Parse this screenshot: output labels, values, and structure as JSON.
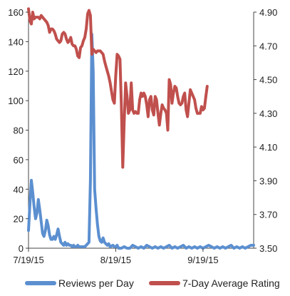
{
  "chart_data": {
    "type": "line",
    "title": "",
    "x_tick_labels": [
      "7/19/15",
      "8/19/15",
      "9/19/15"
    ],
    "x_ticks_day": [
      0,
      31,
      62
    ],
    "xlim_day": [
      0,
      80
    ],
    "left_axis": {
      "label": "",
      "ylim": [
        0,
        160
      ],
      "ticks": [
        "0",
        "20",
        "40",
        "60",
        "80",
        "100",
        "120",
        "140",
        "160"
      ],
      "tick_values": [
        0,
        20,
        40,
        60,
        80,
        100,
        120,
        140,
        160
      ]
    },
    "right_axis": {
      "label": "",
      "ylim": [
        3.5,
        4.9
      ],
      "ticks": [
        "3.50",
        "3.70",
        "3.90",
        "4.10",
        "4.30",
        "4.50",
        "4.70",
        "4.90"
      ],
      "tick_values": [
        3.5,
        3.7,
        3.9,
        4.1,
        4.3,
        4.5,
        4.7,
        4.9
      ]
    },
    "legend_position": "bottom",
    "gridlines": false,
    "series": [
      {
        "name": "Reviews per Day",
        "axis": "left",
        "color": "#5b8fd0",
        "points": [
          [
            0,
            12
          ],
          [
            0.5,
            30
          ],
          [
            1,
            46
          ],
          [
            1.5,
            38
          ],
          [
            2,
            28
          ],
          [
            2.5,
            20
          ],
          [
            3,
            24
          ],
          [
            3.5,
            33
          ],
          [
            4,
            26
          ],
          [
            4.5,
            18
          ],
          [
            5,
            10
          ],
          [
            5.5,
            8
          ],
          [
            6,
            12
          ],
          [
            6.5,
            19
          ],
          [
            7,
            15
          ],
          [
            7.5,
            9
          ],
          [
            8,
            6
          ],
          [
            8.5,
            6
          ],
          [
            9,
            8
          ],
          [
            9.5,
            6
          ],
          [
            10,
            9
          ],
          [
            10.5,
            13
          ],
          [
            11,
            8
          ],
          [
            11.5,
            4
          ],
          [
            12,
            3
          ],
          [
            12.5,
            2
          ],
          [
            13,
            4
          ],
          [
            13.5,
            2
          ],
          [
            14,
            3
          ],
          [
            14.5,
            2
          ],
          [
            15,
            2
          ],
          [
            15.5,
            1
          ],
          [
            16,
            2
          ],
          [
            16.5,
            1
          ],
          [
            17,
            1
          ],
          [
            17.5,
            2
          ],
          [
            18,
            1
          ],
          [
            18.5,
            1
          ],
          [
            19,
            1
          ],
          [
            19.5,
            1
          ],
          [
            20,
            1
          ],
          [
            20.5,
            2
          ],
          [
            21,
            3
          ],
          [
            21.5,
            4
          ],
          [
            22,
            46
          ],
          [
            22.5,
            145
          ],
          [
            23,
            120
          ],
          [
            23.5,
            40
          ],
          [
            24,
            27
          ],
          [
            24.5,
            16
          ],
          [
            25,
            8
          ],
          [
            25.5,
            5
          ],
          [
            26,
            4
          ],
          [
            26.5,
            7
          ],
          [
            27,
            4
          ],
          [
            27.5,
            3
          ],
          [
            28,
            2
          ],
          [
            28.5,
            3
          ],
          [
            29,
            1
          ],
          [
            30,
            2
          ],
          [
            30.5,
            1
          ],
          [
            31,
            1
          ],
          [
            31.5,
            2
          ],
          [
            32,
            0
          ],
          [
            33,
            0
          ],
          [
            34,
            1
          ],
          [
            35,
            0
          ],
          [
            36,
            0
          ],
          [
            37,
            2
          ],
          [
            38,
            1
          ],
          [
            39,
            0
          ],
          [
            40,
            1
          ],
          [
            41,
            0
          ],
          [
            42,
            2
          ],
          [
            43,
            1
          ],
          [
            44,
            0
          ],
          [
            45,
            1
          ],
          [
            46,
            0
          ],
          [
            47,
            1
          ],
          [
            48,
            0
          ],
          [
            49,
            1
          ],
          [
            50,
            2
          ],
          [
            51,
            0
          ],
          [
            52,
            1
          ],
          [
            53,
            0
          ],
          [
            54,
            1
          ],
          [
            55,
            2
          ],
          [
            56,
            0
          ],
          [
            57,
            1
          ],
          [
            58,
            0
          ],
          [
            59,
            1
          ],
          [
            60,
            0
          ],
          [
            61,
            1
          ],
          [
            62,
            0
          ],
          [
            63,
            1
          ],
          [
            64,
            2
          ],
          [
            65,
            1
          ],
          [
            66,
            0
          ],
          [
            67,
            1
          ],
          [
            68,
            0
          ],
          [
            69,
            1
          ],
          [
            70,
            0
          ],
          [
            71,
            1
          ],
          [
            72,
            2
          ],
          [
            73,
            0
          ],
          [
            74,
            1
          ],
          [
            75,
            0
          ],
          [
            76,
            1
          ],
          [
            77,
            0
          ],
          [
            78,
            1
          ],
          [
            79,
            2
          ],
          [
            80,
            2
          ]
        ]
      },
      {
        "name": "7-Day Average Rating",
        "axis": "right",
        "color": "#c0504d",
        "points": [
          [
            0,
            4.92
          ],
          [
            0.5,
            4.85
          ],
          [
            1,
            4.83
          ],
          [
            1.5,
            4.9
          ],
          [
            2,
            4.86
          ],
          [
            2.5,
            4.87
          ],
          [
            3,
            4.87
          ],
          [
            3.5,
            4.87
          ],
          [
            4,
            4.86
          ],
          [
            4.5,
            4.88
          ],
          [
            5,
            4.87
          ],
          [
            5.5,
            4.86
          ],
          [
            6,
            4.85
          ],
          [
            6.5,
            4.84
          ],
          [
            7,
            4.82
          ],
          [
            7.5,
            4.78
          ],
          [
            8,
            4.8
          ],
          [
            8.5,
            4.8
          ],
          [
            9,
            4.79
          ],
          [
            9.5,
            4.77
          ],
          [
            10,
            4.74
          ],
          [
            10.5,
            4.73
          ],
          [
            11,
            4.72
          ],
          [
            11.5,
            4.73
          ],
          [
            12,
            4.77
          ],
          [
            12.5,
            4.78
          ],
          [
            13,
            4.77
          ],
          [
            13.5,
            4.74
          ],
          [
            14,
            4.72
          ],
          [
            14.5,
            4.73
          ],
          [
            15,
            4.75
          ],
          [
            15.5,
            4.71
          ],
          [
            16,
            4.7
          ],
          [
            16.5,
            4.7
          ],
          [
            17,
            4.68
          ],
          [
            17.5,
            4.64
          ],
          [
            18,
            4.63
          ],
          [
            18.5,
            4.69
          ],
          [
            19,
            4.7
          ],
          [
            19.5,
            4.73
          ],
          [
            20,
            4.75
          ],
          [
            20.5,
            4.8
          ],
          [
            21,
            4.89
          ],
          [
            21.5,
            4.91
          ],
          [
            22,
            4.88
          ],
          [
            22.5,
            4.65
          ],
          [
            23,
            4.68
          ],
          [
            23.5,
            4.67
          ],
          [
            24,
            4.66
          ],
          [
            24.5,
            4.67
          ],
          [
            25,
            4.67
          ],
          [
            25.5,
            4.67
          ],
          [
            26,
            4.66
          ],
          [
            26.5,
            4.65
          ],
          [
            27,
            4.61
          ],
          [
            27.5,
            4.58
          ],
          [
            28,
            4.55
          ],
          [
            28.5,
            4.52
          ],
          [
            29,
            4.48
          ],
          [
            29.5,
            4.43
          ],
          [
            30,
            4.38
          ],
          [
            30.5,
            4.36
          ],
          [
            31,
            4.52
          ],
          [
            31.5,
            4.65
          ],
          [
            32,
            4.64
          ],
          [
            32.5,
            4.62
          ],
          [
            33,
            4.35
          ],
          [
            33.5,
            3.98
          ],
          [
            34,
            4.25
          ],
          [
            34.5,
            4.48
          ],
          [
            35,
            4.4
          ],
          [
            35.5,
            4.3
          ],
          [
            36,
            4.32
          ],
          [
            36.5,
            4.48
          ],
          [
            37,
            4.32
          ],
          [
            37.5,
            4.3
          ],
          [
            38,
            4.31
          ],
          [
            38.5,
            4.3
          ],
          [
            39,
            4.3
          ],
          [
            39.5,
            4.38
          ],
          [
            40,
            4.42
          ],
          [
            40.5,
            4.4
          ],
          [
            41,
            4.42
          ],
          [
            41.5,
            4.4
          ],
          [
            42,
            4.35
          ],
          [
            42.5,
            4.28
          ],
          [
            43,
            4.38
          ],
          [
            43.5,
            4.4
          ],
          [
            44,
            4.32
          ],
          [
            44.5,
            4.29
          ],
          [
            45,
            4.4
          ],
          [
            45.5,
            4.38
          ],
          [
            46,
            4.3
          ],
          [
            46.5,
            4.23
          ],
          [
            47,
            4.3
          ],
          [
            47.5,
            4.35
          ],
          [
            48,
            4.33
          ],
          [
            48.5,
            4.32
          ],
          [
            49,
            4.3
          ],
          [
            49.5,
            4.2
          ],
          [
            50,
            4.5
          ],
          [
            50.5,
            4.47
          ],
          [
            51,
            4.36
          ],
          [
            51.5,
            4.42
          ],
          [
            52,
            4.46
          ],
          [
            52.5,
            4.45
          ],
          [
            53,
            4.4
          ],
          [
            53.5,
            4.36
          ],
          [
            54,
            4.35
          ],
          [
            54.5,
            4.36
          ],
          [
            55,
            4.4
          ],
          [
            55.5,
            4.42
          ],
          [
            56,
            4.32
          ],
          [
            56.5,
            4.28
          ],
          [
            57,
            4.36
          ],
          [
            57.5,
            4.44
          ],
          [
            58,
            4.42
          ],
          [
            58.5,
            4.4
          ],
          [
            59,
            4.38
          ],
          [
            59.5,
            4.33
          ],
          [
            60,
            4.3
          ],
          [
            60.5,
            4.3
          ],
          [
            61,
            4.3
          ],
          [
            61.5,
            4.34
          ],
          [
            62,
            4.32
          ],
          [
            62.5,
            4.33
          ],
          [
            63,
            4.4
          ],
          [
            63.5,
            4.46
          ]
        ]
      }
    ]
  }
}
